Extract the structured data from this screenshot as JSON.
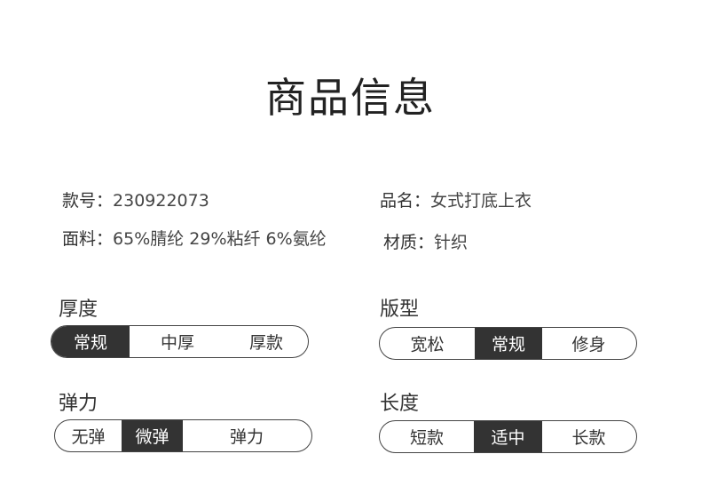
{
  "title": "商品信息",
  "info": {
    "style_no": {
      "key": "款号：",
      "value": "230922073"
    },
    "name": {
      "key": "品名：",
      "value": "女式打底上衣"
    },
    "fabric": {
      "key": "面料：",
      "value": "65%腈纶 29%粘纤 6%氨纶"
    },
    "material": {
      "key": "材质：",
      "value": "针织"
    }
  },
  "attributes": {
    "thickness": {
      "label": "厚度",
      "options": [
        "常规",
        "中厚",
        "厚款"
      ],
      "selected": "常规"
    },
    "fit": {
      "label": "版型",
      "options": [
        "宽松",
        "常规",
        "修身"
      ],
      "selected": "常规"
    },
    "elasticity": {
      "label": "弹力",
      "options": [
        "无弹",
        "微弹",
        "弹力"
      ],
      "selected": "微弹"
    },
    "length": {
      "label": "长度",
      "options": [
        "短款",
        "适中",
        "长款"
      ],
      "selected": "适中"
    }
  },
  "colors": {
    "selected_bg": "#333333",
    "border": "#444444"
  }
}
